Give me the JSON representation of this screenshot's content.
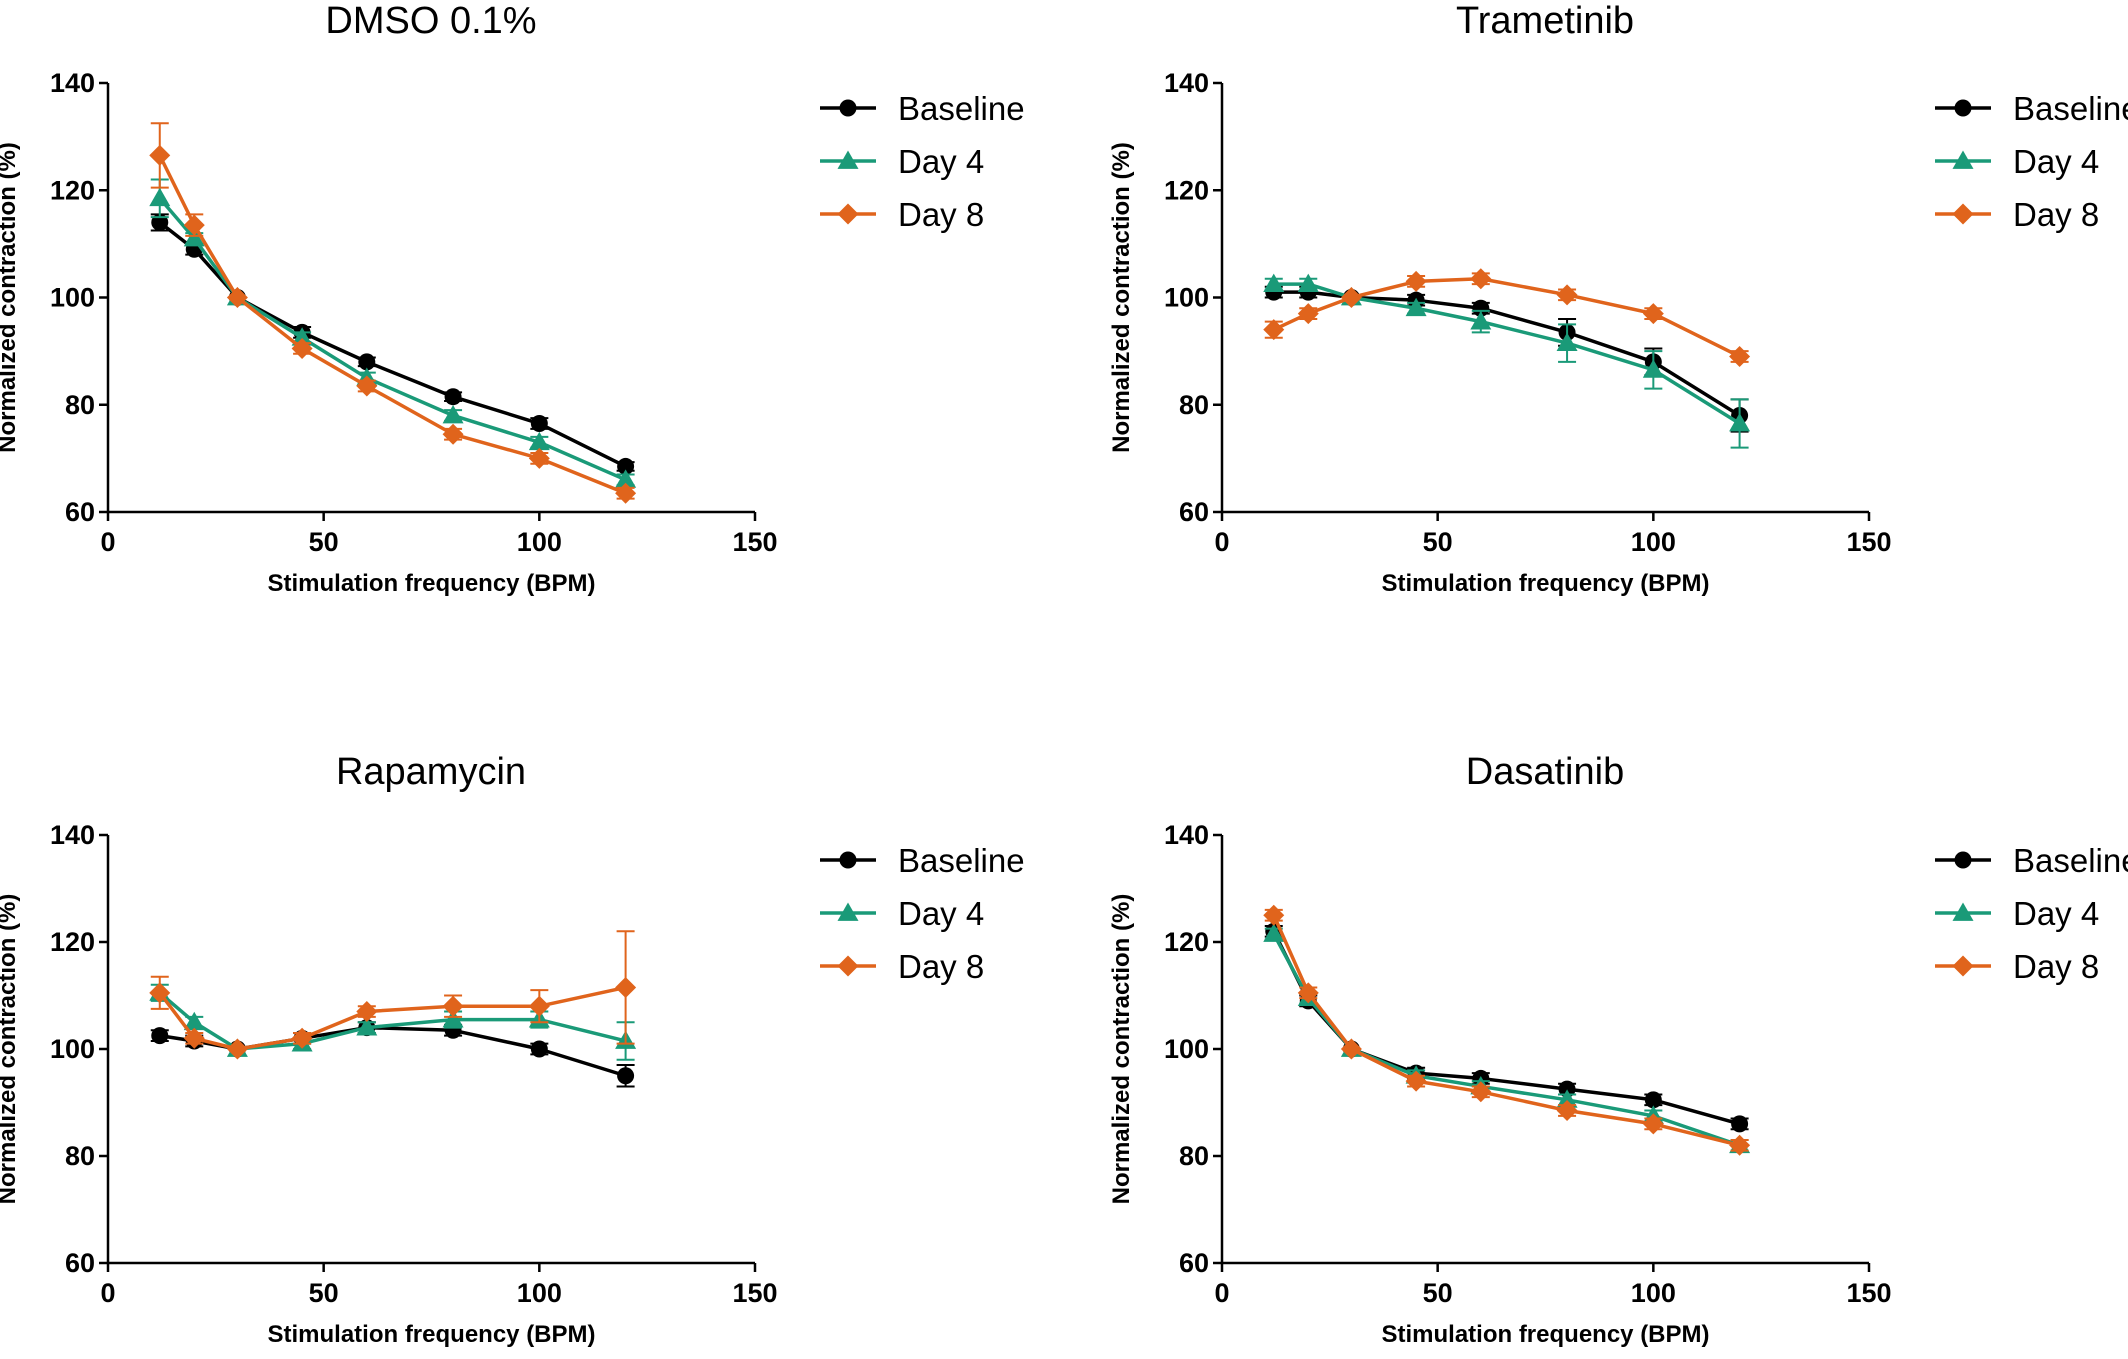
{
  "chart_data": [
    {
      "type": "line",
      "title": "DMSO 0.1%",
      "xlabel": "Stimulation frequency (BPM)",
      "ylabel": "Normalized contraction (%)",
      "xlim": [
        0,
        150
      ],
      "ylim": [
        60,
        140
      ],
      "xticks": [
        0,
        50,
        100,
        150
      ],
      "yticks": [
        60,
        80,
        100,
        120,
        140
      ],
      "x": [
        12,
        20,
        30,
        45,
        60,
        80,
        100,
        120
      ],
      "legend_position": "right",
      "grid": false,
      "series": [
        {
          "name": "Baseline",
          "marker": "circle",
          "color": "#000000",
          "values": [
            114,
            109,
            100,
            93.5,
            88,
            81.5,
            76.5,
            68.5
          ],
          "error": [
            1.5,
            1.0,
            0,
            1.0,
            0.8,
            0.8,
            1.0,
            0.8
          ]
        },
        {
          "name": "Day 4",
          "marker": "triangle",
          "color": "#1a9a78",
          "values": [
            118.5,
            111,
            100,
            92.5,
            85,
            78,
            73,
            66
          ],
          "error": [
            3.5,
            1.0,
            0,
            1.0,
            1.0,
            1.0,
            1.0,
            1.0
          ]
        },
        {
          "name": "Day 8",
          "marker": "diamond",
          "color": "#e0641c",
          "values": [
            126.5,
            113.5,
            100,
            90.5,
            83.5,
            74.5,
            70,
            63.5
          ],
          "error": [
            6.0,
            2.0,
            0,
            1.0,
            1.0,
            1.0,
            1.0,
            1.0
          ]
        }
      ]
    },
    {
      "type": "line",
      "title": "Trametinib",
      "xlabel": "Stimulation frequency (BPM)",
      "ylabel": "Normalized contraction (%)",
      "xlim": [
        0,
        150
      ],
      "ylim": [
        60,
        140
      ],
      "xticks": [
        0,
        50,
        100,
        150
      ],
      "yticks": [
        60,
        80,
        100,
        120,
        140
      ],
      "x": [
        12,
        20,
        30,
        45,
        60,
        80,
        100,
        120
      ],
      "legend_position": "right",
      "grid": false,
      "series": [
        {
          "name": "Baseline",
          "marker": "circle",
          "color": "#000000",
          "values": [
            101,
            101,
            100,
            99.5,
            98,
            93.5,
            88,
            78
          ],
          "error": [
            1.0,
            1.0,
            0,
            1.0,
            1.0,
            2.5,
            2.5,
            3.0
          ]
        },
        {
          "name": "Day 4",
          "marker": "triangle",
          "color": "#1a9a78",
          "values": [
            102.5,
            102.5,
            100,
            98,
            95.5,
            91.5,
            86.5,
            76.5
          ],
          "error": [
            1.0,
            1.0,
            0,
            1.0,
            2.0,
            3.5,
            3.5,
            4.5
          ]
        },
        {
          "name": "Day 8",
          "marker": "diamond",
          "color": "#e0641c",
          "values": [
            94,
            97,
            100,
            103,
            103.5,
            100.5,
            97,
            89
          ],
          "error": [
            1.5,
            1.0,
            0,
            1.0,
            1.0,
            1.0,
            1.0,
            1.0
          ]
        }
      ]
    },
    {
      "type": "line",
      "title": "Rapamycin",
      "xlabel": "Stimulation frequency (BPM)",
      "ylabel": "Normalized contraction (%)",
      "xlim": [
        0,
        150
      ],
      "ylim": [
        60,
        140
      ],
      "xticks": [
        0,
        50,
        100,
        150
      ],
      "yticks": [
        60,
        80,
        100,
        120,
        140
      ],
      "x": [
        12,
        20,
        30,
        45,
        60,
        80,
        100,
        120
      ],
      "legend_position": "right",
      "grid": false,
      "series": [
        {
          "name": "Baseline",
          "marker": "circle",
          "color": "#000000",
          "values": [
            102.5,
            101.5,
            100,
            102,
            104,
            103.5,
            100,
            95
          ],
          "error": [
            1.0,
            1.0,
            0,
            1.0,
            1.0,
            1.0,
            1.0,
            2.0
          ]
        },
        {
          "name": "Day 4",
          "marker": "triangle",
          "color": "#1a9a78",
          "values": [
            110.5,
            105,
            100,
            101,
            104,
            105.5,
            105.5,
            101.5
          ],
          "error": [
            1.5,
            1.0,
            0,
            1.0,
            1.0,
            1.5,
            1.5,
            3.5
          ]
        },
        {
          "name": "Day 8",
          "marker": "diamond",
          "color": "#e0641c",
          "values": [
            110.5,
            102,
            100,
            102,
            107,
            108,
            108,
            111.5
          ],
          "error": [
            3.0,
            1.0,
            0,
            1.0,
            1.0,
            2.0,
            3.0,
            10.5
          ]
        }
      ]
    },
    {
      "type": "line",
      "title": "Dasatinib",
      "xlabel": "Stimulation frequency (BPM)",
      "ylabel": "Normalized contraction (%)",
      "xlim": [
        0,
        150
      ],
      "ylim": [
        60,
        140
      ],
      "xticks": [
        0,
        50,
        100,
        150
      ],
      "yticks": [
        60,
        80,
        100,
        120,
        140
      ],
      "x": [
        12,
        20,
        30,
        45,
        60,
        80,
        100,
        120
      ],
      "legend_position": "right",
      "grid": false,
      "series": [
        {
          "name": "Baseline",
          "marker": "circle",
          "color": "#000000",
          "values": [
            122,
            109,
            100,
            95.5,
            94.5,
            92.5,
            90.5,
            86
          ],
          "error": [
            1.0,
            1.0,
            0,
            1.0,
            1.0,
            1.0,
            1.0,
            1.0
          ]
        },
        {
          "name": "Day 4",
          "marker": "triangle",
          "color": "#1a9a78",
          "values": [
            121.5,
            109.5,
            100,
            95,
            93,
            90.5,
            87.5,
            82
          ],
          "error": [
            1.0,
            1.0,
            0,
            1.0,
            1.0,
            1.0,
            1.0,
            1.0
          ]
        },
        {
          "name": "Day 8",
          "marker": "diamond",
          "color": "#e0641c",
          "values": [
            125,
            110.5,
            100,
            94,
            92,
            88.5,
            86,
            82
          ],
          "error": [
            1.0,
            1.0,
            0,
            1.0,
            1.0,
            1.0,
            1.0,
            1.0
          ]
        }
      ]
    }
  ]
}
